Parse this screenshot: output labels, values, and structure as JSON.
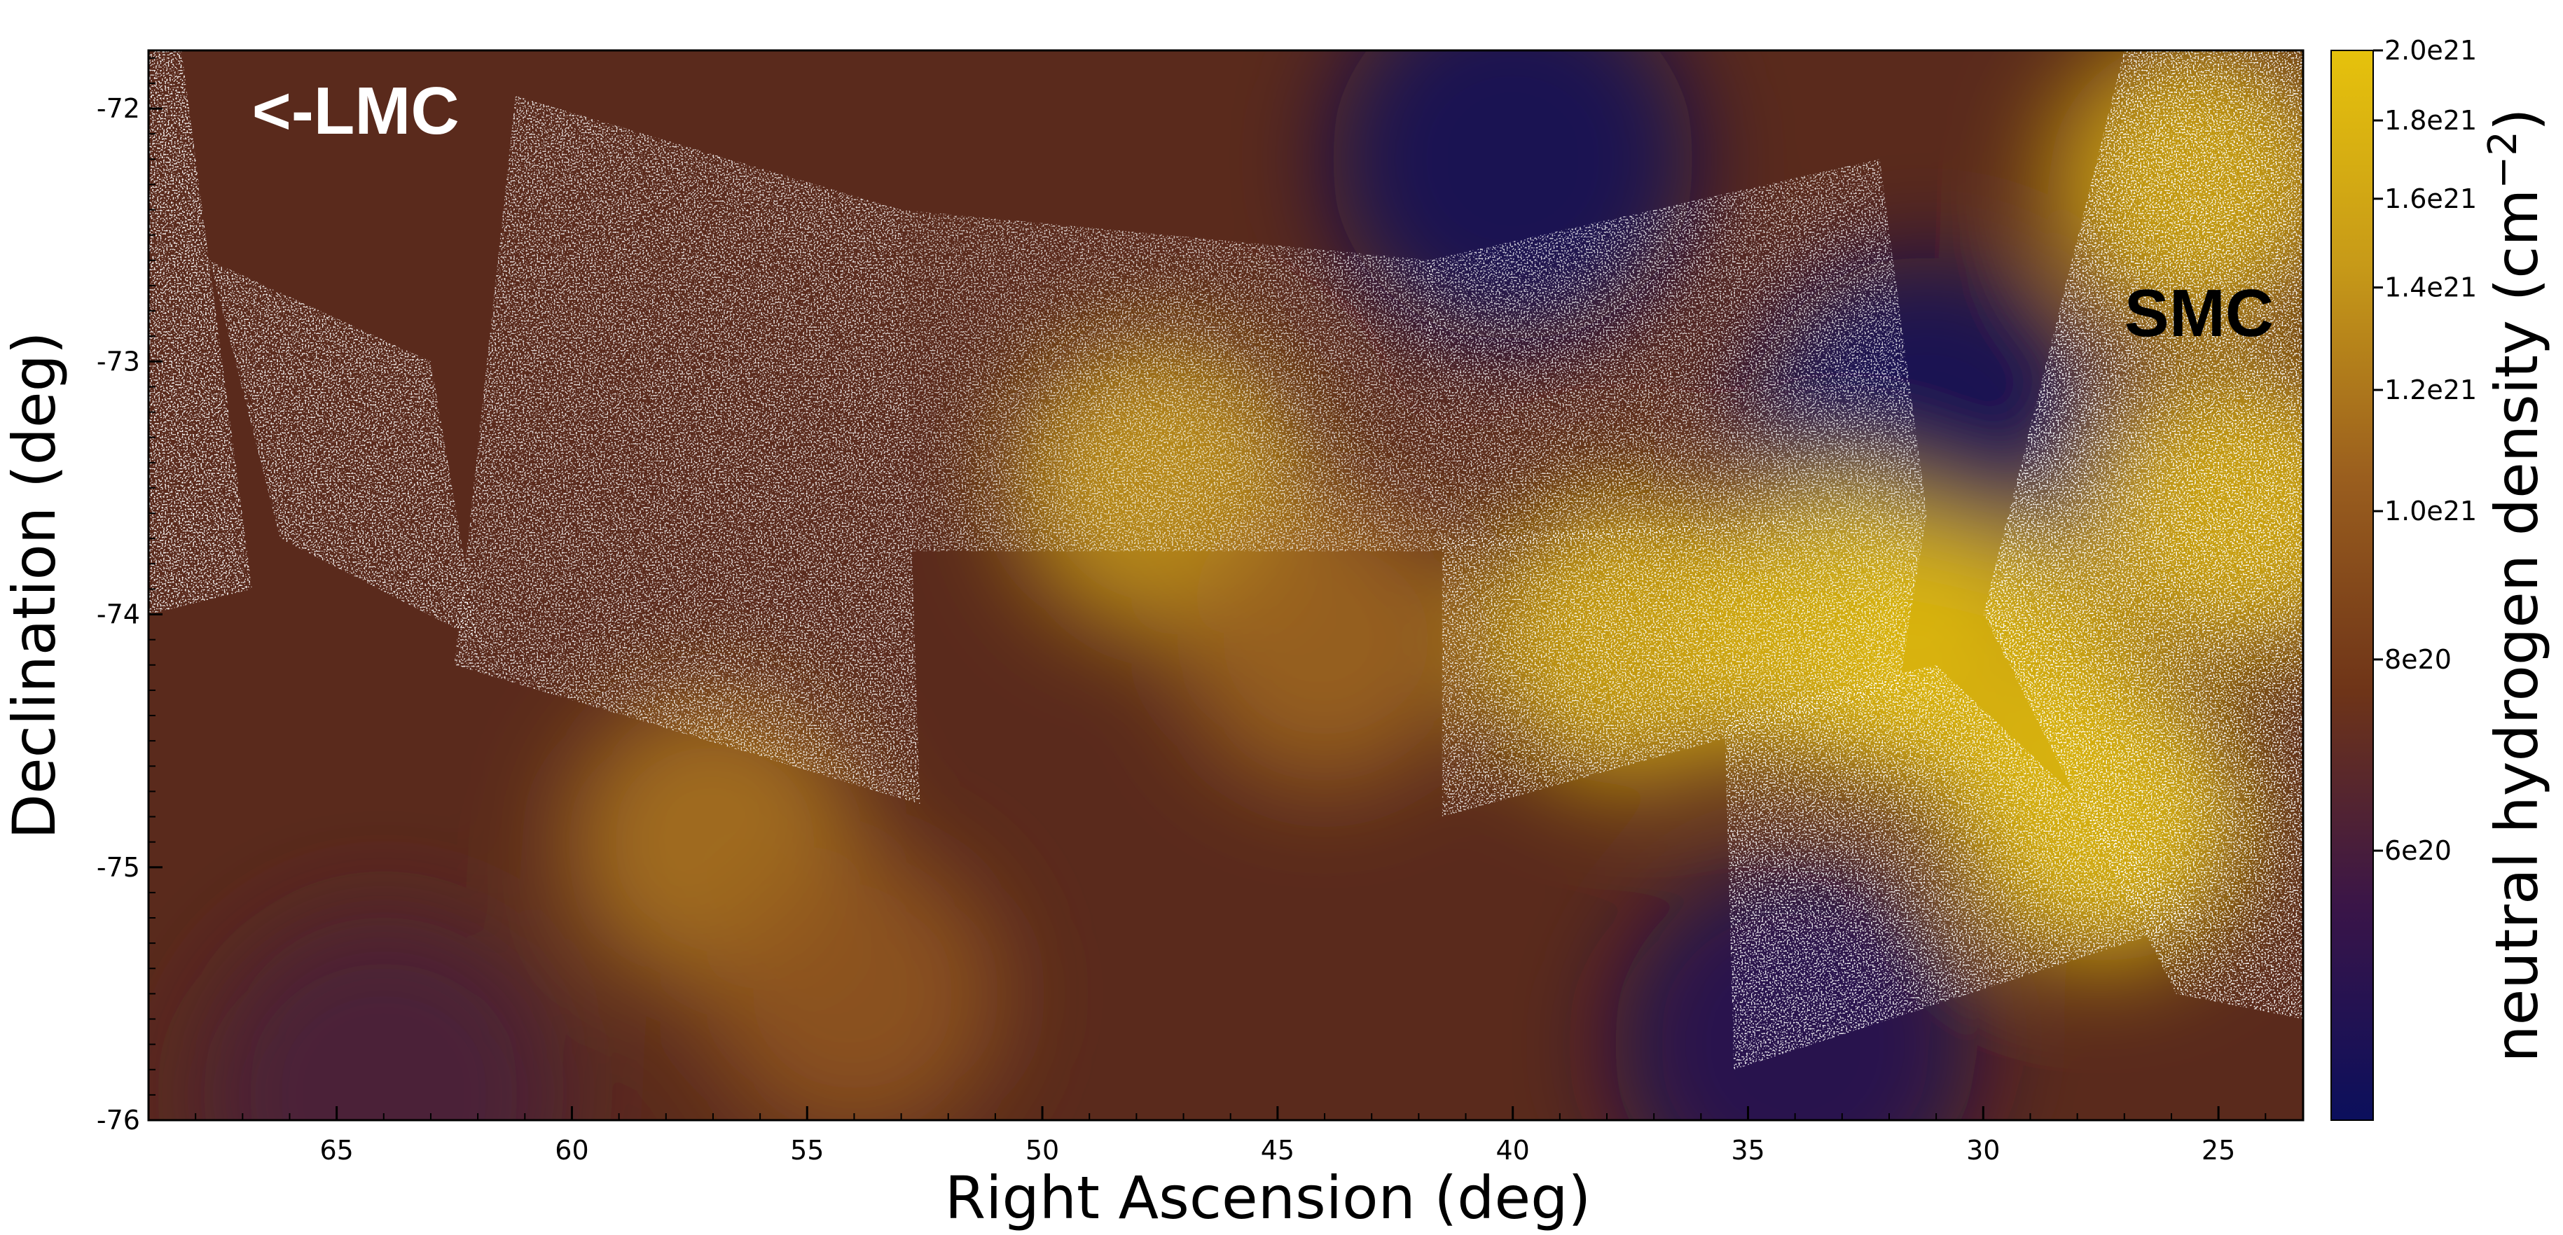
{
  "chart_data": {
    "type": "heatmap",
    "title": "",
    "xlabel": "Right Ascension (deg)",
    "ylabel": "Declination (deg)",
    "xlim": [
      69,
      23.2
    ],
    "ylim": [
      -76,
      -71.77
    ],
    "x_reversed": true,
    "x_ticks": [
      65,
      60,
      55,
      50,
      45,
      40,
      35,
      30,
      25
    ],
    "y_ticks": [
      -72,
      -73,
      -74,
      -75,
      -76
    ],
    "grid": false,
    "colormap": [
      "#0b0f5c",
      "#3a1548",
      "#6e3418",
      "#9a5e1e",
      "#c79a18",
      "#e6c20c"
    ],
    "colorbar": {
      "label": "neutral hydrogen density (cm",
      "label_sup": "−2",
      "label_close": ")",
      "scale": "log",
      "range": [
        "<6e20",
        "2.0e21"
      ],
      "ticks": [
        "2.0e21",
        "1.8e21",
        "1.6e21",
        "1.4e21",
        "1.2e21",
        "1.0e21",
        "8e20",
        "6e20"
      ],
      "tick_values": [
        2e+21,
        1.8e+21,
        1.6e+21,
        1.4e+21,
        1.2e+21,
        1e+21,
        8e+20,
        6e+20
      ]
    },
    "annotations": [
      {
        "text": "<-LMC",
        "ra": 66.8,
        "dec": -72.1,
        "color": "#ffffff"
      },
      {
        "text": "SMC",
        "ra": 27.0,
        "dec": -72.9,
        "color": "#000000"
      }
    ],
    "hi_blobs": [
      {
        "ra": 27.5,
        "dec": -74.8,
        "value": 2e+21
      },
      {
        "ra": 33.0,
        "dec": -74.05,
        "value": 1.9e+21
      },
      {
        "ra": 30.0,
        "dec": -74.2,
        "value": 1.85e+21
      },
      {
        "ra": 37.5,
        "dec": -74.1,
        "value": 1.7e+21
      },
      {
        "ra": 24.5,
        "dec": -73.6,
        "value": 1.8e+21
      },
      {
        "ra": 25.5,
        "dec": -72.3,
        "value": 1.7e+21
      },
      {
        "ra": 47.5,
        "dec": -73.5,
        "value": 1.45e+21
      },
      {
        "ra": 57.0,
        "dec": -74.9,
        "value": 1.2e+21
      },
      {
        "ra": 44.0,
        "dec": -74.1,
        "value": 1.1e+21
      },
      {
        "ra": 54.0,
        "dec": -75.5,
        "value": 1e+21
      }
    ],
    "low_regions": [
      {
        "ra": 40.0,
        "dec": -72.2,
        "value": 4e+20
      },
      {
        "ra": 31.2,
        "dec": -73.3,
        "value": 4e+20
      },
      {
        "ra": 34.0,
        "dec": -75.7,
        "value": 4.5e+20
      },
      {
        "ra": 64.0,
        "dec": -75.9,
        "value": 6e+20
      }
    ],
    "star_fields": [
      {
        "corners": [
          [
            69.0,
            -71.77
          ],
          [
            68.3,
            -71.77
          ],
          [
            66.8,
            -73.9
          ],
          [
            69.0,
            -74.0
          ]
        ],
        "density": 0.55
      },
      {
        "corners": [
          [
            67.7,
            -72.6
          ],
          [
            63.0,
            -73.0
          ],
          [
            62.0,
            -74.1
          ],
          [
            66.2,
            -73.7
          ]
        ],
        "density": 0.5
      },
      {
        "corners": [
          [
            61.2,
            -71.95
          ],
          [
            53.0,
            -72.4
          ],
          [
            52.6,
            -74.75
          ],
          [
            62.5,
            -74.2
          ]
        ],
        "density": 0.45
      },
      {
        "corners": [
          [
            53.0,
            -72.4
          ],
          [
            41.7,
            -72.6
          ],
          [
            41.8,
            -73.75
          ],
          [
            52.8,
            -73.75
          ]
        ],
        "density": 0.35
      },
      {
        "corners": [
          [
            41.8,
            -72.6
          ],
          [
            32.2,
            -72.2
          ],
          [
            31.2,
            -73.6
          ],
          [
            41.8,
            -73.75
          ]
        ],
        "density": 0.4
      },
      {
        "corners": [
          [
            41.5,
            -73.7
          ],
          [
            31.2,
            -73.6
          ],
          [
            31.8,
            -74.3
          ],
          [
            41.5,
            -74.8
          ]
        ],
        "density": 0.45
      },
      {
        "corners": [
          [
            35.5,
            -74.4
          ],
          [
            31.0,
            -74.2
          ],
          [
            25.3,
            -75.2
          ],
          [
            35.3,
            -75.8
          ]
        ],
        "density": 0.5
      },
      {
        "corners": [
          [
            30.0,
            -74.0
          ],
          [
            27.0,
            -71.77
          ],
          [
            23.2,
            -71.77
          ],
          [
            23.2,
            -75.6
          ],
          [
            25.9,
            -75.5
          ]
        ],
        "density": 0.55
      }
    ]
  }
}
